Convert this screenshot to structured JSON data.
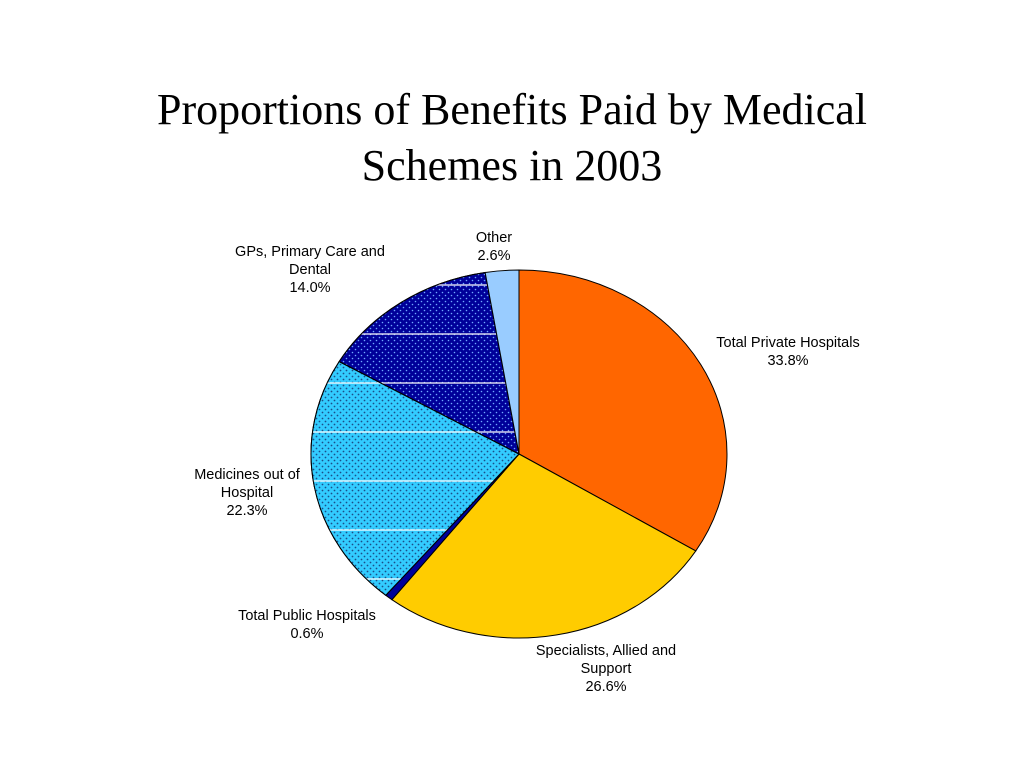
{
  "slide": {
    "title": "Proportions of Benefits Paid by Medical Schemes in 2003"
  },
  "chart_data": {
    "type": "pie",
    "title": "Proportions of Benefits Paid by Medical Schemes in 2003",
    "start": "12 o'clock, clockwise",
    "slices": [
      {
        "name": "Total Private Hospitals",
        "line1": "Total Private Hospitals",
        "line2": "",
        "pct_label": "33.8%",
        "value": 33.8,
        "color": "#FF6600",
        "pattern": "solid"
      },
      {
        "name": "Specialists, Allied and Support",
        "line1": "Specialists, Allied and",
        "line2": "Support",
        "pct_label": "26.6%",
        "value": 26.6,
        "color": "#FFCC00",
        "pattern": "solid"
      },
      {
        "name": "Total Public Hospitals",
        "line1": "Total Public Hospitals",
        "line2": "",
        "pct_label": "0.6%",
        "value": 0.6,
        "color": "#000099",
        "pattern": "solid"
      },
      {
        "name": "Medicines out of Hospital",
        "line1": "Medicines out of",
        "line2": "Hospital",
        "pct_label": "22.3%",
        "value": 22.3,
        "color": "#33CCFF",
        "pattern": "dots-with-white-lines"
      },
      {
        "name": "GPs, Primary Care and Dental",
        "line1": "GPs, Primary Care and",
        "line2": "Dental",
        "pct_label": "14.0%",
        "value": 14.0,
        "color": "#000099",
        "pattern": "dots-with-white-lines"
      },
      {
        "name": "Other",
        "line1": "Other",
        "line2": "",
        "pct_label": "2.6%",
        "value": 2.6,
        "color": "#99CCFF",
        "pattern": "solid"
      }
    ]
  }
}
